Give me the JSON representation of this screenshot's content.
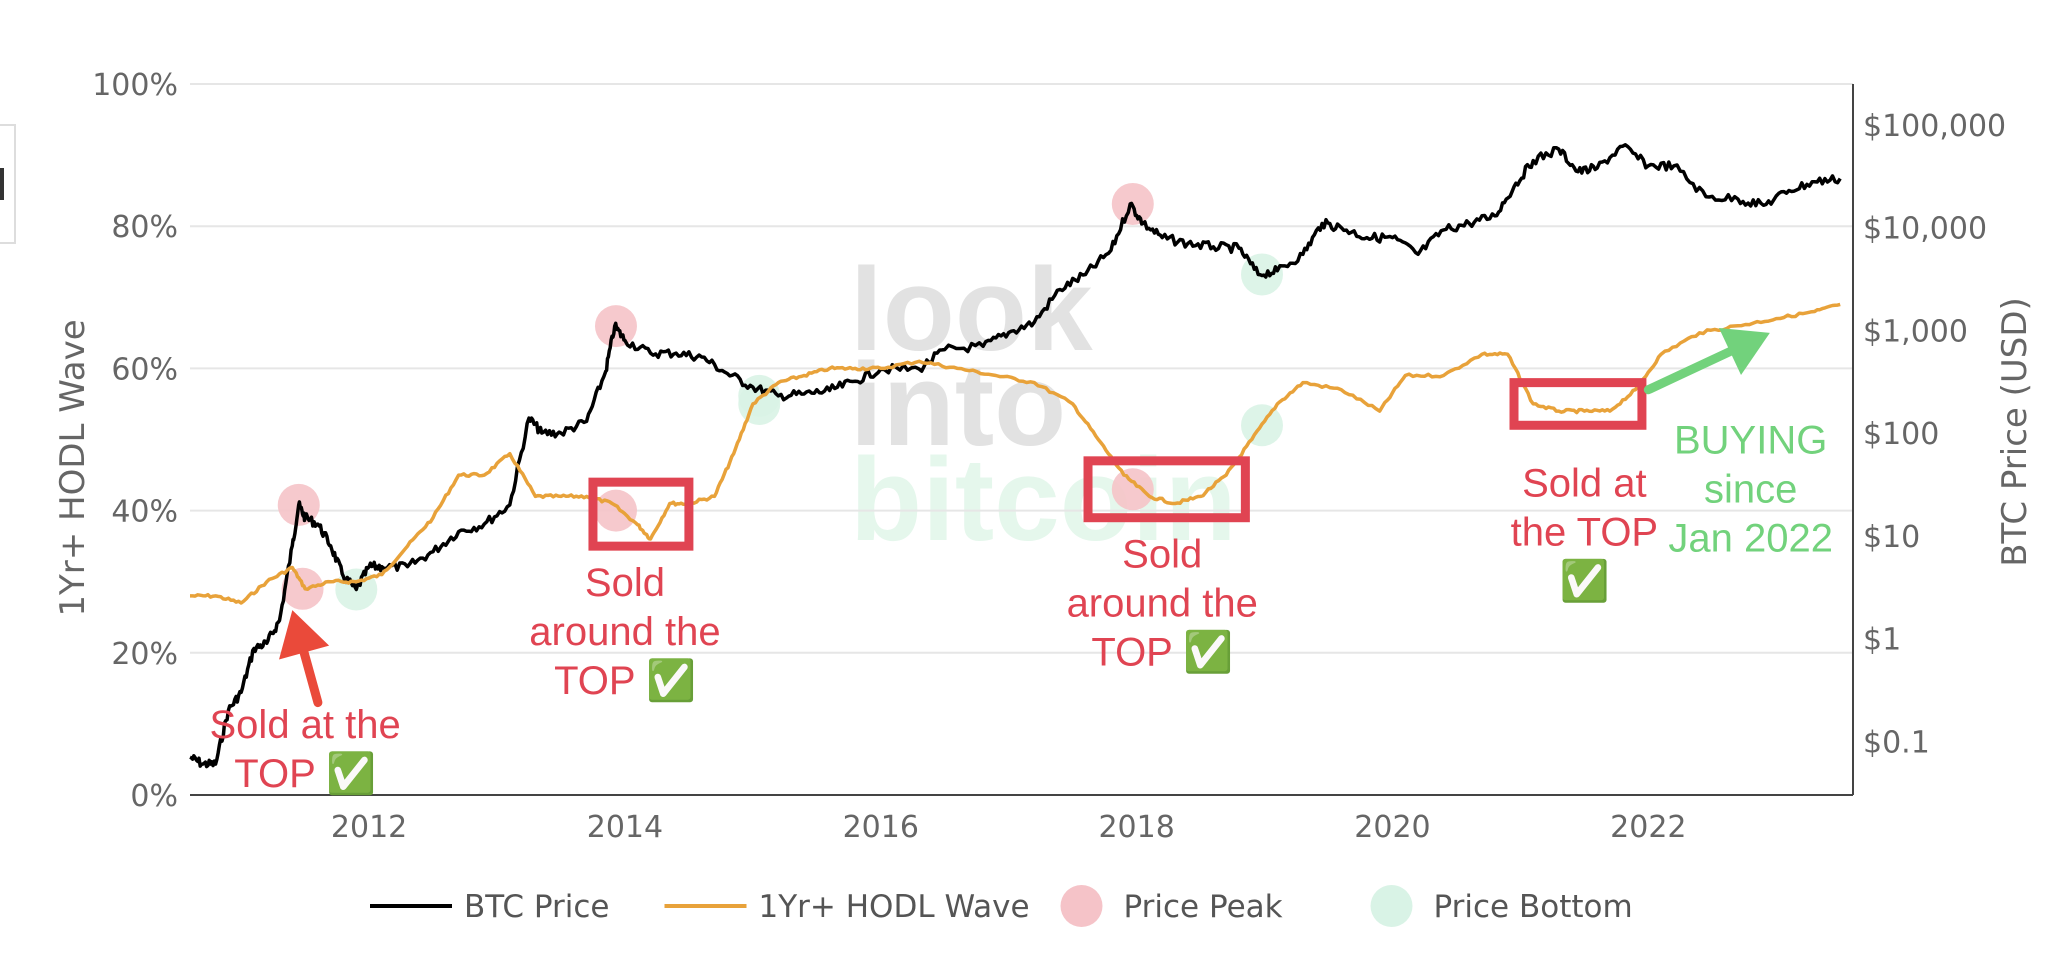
{
  "chart_data": {
    "type": "line",
    "title": "",
    "y_left": {
      "label": "1Yr+ HODL Wave",
      "range": [
        0,
        100
      ],
      "ticks": [
        "0%",
        "20%",
        "40%",
        "60%",
        "80%",
        "100%"
      ]
    },
    "y_right": {
      "label": "BTC Price (USD)",
      "scale": "log",
      "range": [
        0.03,
        250000
      ],
      "ticks": [
        "$0.1",
        "$1",
        "$10",
        "$100",
        "$1,000",
        "$10,000",
        "$100,000"
      ],
      "tick_values": [
        0.1,
        1,
        10,
        100,
        1000,
        10000,
        100000
      ]
    },
    "x_axis": {
      "range": [
        2010.6,
        2023.6
      ],
      "ticks": [
        "2012",
        "2014",
        "2016",
        "2018",
        "2020",
        "2022"
      ],
      "tick_values": [
        2012,
        2014,
        2016,
        2018,
        2020,
        2022
      ]
    },
    "grid": "horizontal",
    "legend_placement": "bottom",
    "series": [
      {
        "name": "BTC Price",
        "axis": "right",
        "color": "#000000",
        "points": [
          [
            2010.6,
            0.07
          ],
          [
            2010.7,
            0.06
          ],
          [
            2010.8,
            0.06
          ],
          [
            2010.9,
            0.2
          ],
          [
            2011.0,
            0.3
          ],
          [
            2011.1,
            0.8
          ],
          [
            2011.2,
            0.9
          ],
          [
            2011.3,
            1.5
          ],
          [
            2011.4,
            8
          ],
          [
            2011.45,
            20
          ],
          [
            2011.5,
            15
          ],
          [
            2011.6,
            13
          ],
          [
            2011.7,
            8
          ],
          [
            2011.8,
            4
          ],
          [
            2011.9,
            3
          ],
          [
            2012.0,
            5
          ],
          [
            2012.1,
            5
          ],
          [
            2012.3,
            5
          ],
          [
            2012.5,
            7
          ],
          [
            2012.7,
            11
          ],
          [
            2012.9,
            13
          ],
          [
            2013.1,
            20
          ],
          [
            2013.25,
            140
          ],
          [
            2013.35,
            100
          ],
          [
            2013.5,
            100
          ],
          [
            2013.7,
            130
          ],
          [
            2013.85,
            400
          ],
          [
            2013.92,
            1100
          ],
          [
            2014.0,
            800
          ],
          [
            2014.2,
            600
          ],
          [
            2014.4,
            600
          ],
          [
            2014.6,
            550
          ],
          [
            2014.8,
            380
          ],
          [
            2015.0,
            280
          ],
          [
            2015.2,
            230
          ],
          [
            2015.4,
            240
          ],
          [
            2015.6,
            260
          ],
          [
            2015.8,
            320
          ],
          [
            2016.0,
            420
          ],
          [
            2016.3,
            420
          ],
          [
            2016.5,
            650
          ],
          [
            2016.8,
            700
          ],
          [
            2017.0,
            950
          ],
          [
            2017.2,
            1200
          ],
          [
            2017.4,
            2500
          ],
          [
            2017.6,
            3500
          ],
          [
            2017.8,
            6000
          ],
          [
            2017.95,
            17000
          ],
          [
            2018.05,
            11000
          ],
          [
            2018.2,
            8000
          ],
          [
            2018.4,
            7000
          ],
          [
            2018.6,
            6500
          ],
          [
            2018.8,
            6300
          ],
          [
            2018.95,
            3500
          ],
          [
            2019.1,
            3800
          ],
          [
            2019.3,
            5500
          ],
          [
            2019.45,
            11000
          ],
          [
            2019.6,
            10000
          ],
          [
            2019.8,
            8000
          ],
          [
            2020.0,
            8000
          ],
          [
            2020.2,
            5500
          ],
          [
            2020.4,
            9500
          ],
          [
            2020.6,
            11000
          ],
          [
            2020.8,
            13000
          ],
          [
            2020.95,
            25000
          ],
          [
            2021.1,
            45000
          ],
          [
            2021.3,
            58000
          ],
          [
            2021.45,
            35000
          ],
          [
            2021.6,
            38000
          ],
          [
            2021.8,
            62000
          ],
          [
            2022.0,
            40000
          ],
          [
            2022.2,
            40000
          ],
          [
            2022.45,
            20000
          ],
          [
            2022.7,
            19000
          ],
          [
            2022.9,
            16500
          ],
          [
            2023.1,
            23000
          ],
          [
            2023.3,
            28000
          ],
          [
            2023.5,
            30000
          ]
        ]
      },
      {
        "name": "1Yr+ HODL Wave",
        "axis": "left",
        "color": "#e8a23a",
        "points": [
          [
            2010.6,
            28
          ],
          [
            2010.8,
            28
          ],
          [
            2011.0,
            27
          ],
          [
            2011.2,
            30
          ],
          [
            2011.4,
            32
          ],
          [
            2011.5,
            29
          ],
          [
            2011.7,
            30
          ],
          [
            2011.9,
            30
          ],
          [
            2012.1,
            31
          ],
          [
            2012.3,
            35
          ],
          [
            2012.5,
            39
          ],
          [
            2012.7,
            45
          ],
          [
            2012.9,
            45
          ],
          [
            2013.1,
            48
          ],
          [
            2013.3,
            42
          ],
          [
            2013.5,
            42
          ],
          [
            2013.7,
            42
          ],
          [
            2013.9,
            41
          ],
          [
            2014.1,
            38
          ],
          [
            2014.2,
            36
          ],
          [
            2014.35,
            41
          ],
          [
            2014.5,
            41
          ],
          [
            2014.7,
            42
          ],
          [
            2014.85,
            48
          ],
          [
            2015.0,
            55
          ],
          [
            2015.2,
            58
          ],
          [
            2015.4,
            59
          ],
          [
            2015.6,
            60
          ],
          [
            2015.8,
            60
          ],
          [
            2016.0,
            60
          ],
          [
            2016.3,
            61
          ],
          [
            2016.6,
            60
          ],
          [
            2016.9,
            59
          ],
          [
            2017.2,
            58
          ],
          [
            2017.5,
            55
          ],
          [
            2017.7,
            50
          ],
          [
            2017.9,
            45
          ],
          [
            2018.1,
            42
          ],
          [
            2018.3,
            41
          ],
          [
            2018.5,
            42
          ],
          [
            2018.7,
            45
          ],
          [
            2018.9,
            50
          ],
          [
            2019.1,
            55
          ],
          [
            2019.3,
            58
          ],
          [
            2019.6,
            57
          ],
          [
            2019.9,
            54
          ],
          [
            2020.1,
            59
          ],
          [
            2020.4,
            59
          ],
          [
            2020.7,
            62
          ],
          [
            2020.9,
            62
          ],
          [
            2021.1,
            55
          ],
          [
            2021.3,
            54
          ],
          [
            2021.5,
            54
          ],
          [
            2021.7,
            54
          ],
          [
            2021.9,
            57
          ],
          [
            2022.1,
            62
          ],
          [
            2022.4,
            65
          ],
          [
            2022.7,
            66
          ],
          [
            2023.0,
            67
          ],
          [
            2023.3,
            68
          ],
          [
            2023.5,
            69
          ]
        ]
      },
      {
        "name": "Price Peak",
        "type": "scatter",
        "color": "#f5c3c8",
        "points": [
          {
            "x": 2011.45,
            "axis": "right",
            "y": 20
          },
          {
            "x": 2011.48,
            "axis": "left",
            "y": 29
          },
          {
            "x": 2013.93,
            "axis": "right",
            "y": 1100
          },
          {
            "x": 2013.93,
            "axis": "left",
            "y": 40
          },
          {
            "x": 2017.97,
            "axis": "right",
            "y": 17000
          },
          {
            "x": 2017.97,
            "axis": "left",
            "y": 43
          }
        ]
      },
      {
        "name": "Price Bottom",
        "type": "scatter",
        "color": "#d9f3e6",
        "points": [
          {
            "x": 2011.9,
            "axis": "right",
            "y": 3
          },
          {
            "x": 2015.05,
            "axis": "right",
            "y": 230
          },
          {
            "x": 2015.05,
            "axis": "left",
            "y": 55
          },
          {
            "x": 2018.98,
            "axis": "right",
            "y": 3500
          },
          {
            "x": 2018.98,
            "axis": "left",
            "y": 52
          }
        ]
      }
    ],
    "annotations": [
      {
        "lines": [
          "Sold at the",
          "TOP ✅"
        ],
        "color": "#e04452",
        "x": 2011.5,
        "y_left": 8
      },
      {
        "lines": [
          "Sold",
          "around the",
          "TOP ✅"
        ],
        "color": "#e04452",
        "x": 2014.0,
        "y_left": 28
      },
      {
        "lines": [
          "Sold",
          "around the",
          "TOP ✅"
        ],
        "color": "#e04452",
        "x": 2018.2,
        "y_left": 32
      },
      {
        "lines": [
          "Sold at",
          "the TOP",
          "✅"
        ],
        "color": "#e04452",
        "x": 2021.5,
        "y_left": 42
      },
      {
        "lines": [
          "BUYING",
          "since",
          "Jan 2022"
        ],
        "color": "#72d27c",
        "x": 2022.8,
        "y_left": 48
      }
    ],
    "highlight_boxes": [
      {
        "x0": 2013.75,
        "x1": 2014.5,
        "y0_left": 35,
        "y1_left": 44
      },
      {
        "x0": 2017.62,
        "x1": 2018.85,
        "y0_left": 39,
        "y1_left": 47
      },
      {
        "x0": 2020.95,
        "x1": 2021.95,
        "y0_left": 52,
        "y1_left": 58
      }
    ],
    "arrows": [
      {
        "color": "#ea4a3a",
        "from": [
          2011.6,
          13
        ],
        "to": [
          2011.4,
          26
        ]
      },
      {
        "color": "#72d27c",
        "from": [
          2022.0,
          57
        ],
        "to": [
          2022.95,
          65
        ]
      }
    ],
    "watermark": [
      "look",
      "into",
      "bitcoin"
    ]
  }
}
